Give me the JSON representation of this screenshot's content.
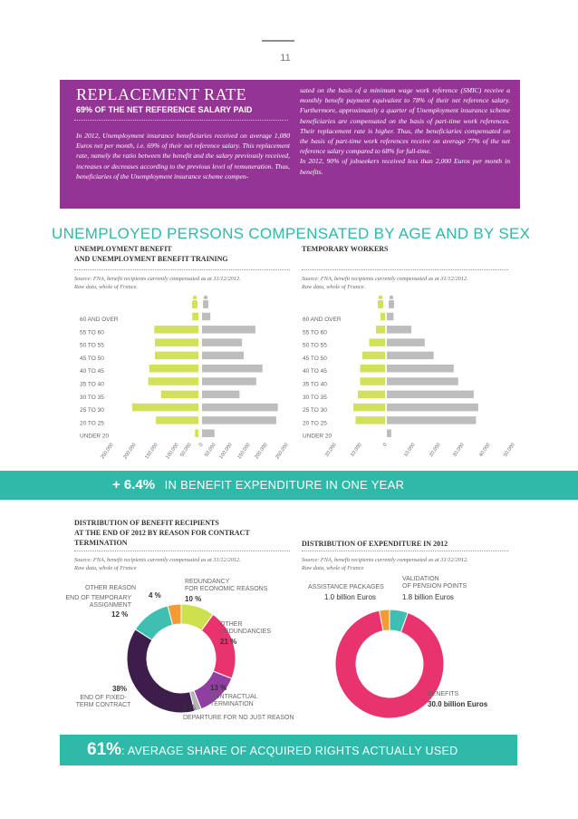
{
  "page_number": "11",
  "replacement": {
    "title": "REPLACEMENT RATE",
    "subtitle": "69% OF THE NET REFERENCE SALARY PAID",
    "left_text": "In 2012, Unemployment insurance beneficiaries received on average 1,080 Euros net per month, i.e. 69% of their net reference salary. This replacement rate, namely the ratio between the benefit and the salary previously received, increases or decreases according to the previous level of remuneration. Thus, beneficiaries of the Unemployment insurance scheme compen-",
    "right_text": "sated on the basis of a minimum wage work reference (SMIC) receive a monthly benefit payment equivalent to 78% of their net reference salary. Furthermore, approximately a quarter of Unemployment insurance scheme beneficiaries are compensated on the basis of part-time work references. Their replacement rate is higher. Thus, the beneficiaries compensated on the basis of part-time work references receive on average 77% of the net reference salary compared to 68% for full-time.",
    "right_text2": "In 2012, 90% of jobseekers received less than 2,000 Euros per month in benefits."
  },
  "section_title": "UNEMPLOYED PERSONS COMPENSATED BY AGE AND BY SEX",
  "left_pyramid_title_1": "UNEMPLOYMENT BENEFIT",
  "left_pyramid_title_2": "AND UNEMPLOYMENT BENEFIT TRAINING",
  "right_pyramid_title": "TEMPORARY WORKERS",
  "source_line_1": "Source: FNA, benefit recipients currently compensated as at 31/12/2012.",
  "source_line_2": "Raw data, whole of France.",
  "source_line_2b": "Raw data, whole of France",
  "banner1_big": "+ 6.4%",
  "banner1_text": "IN BENEFIT EXPENDITURE IN ONE YEAR",
  "dist_title_1": "DISTRIBUTION OF BENEFIT RECIPIENTS",
  "dist_title_2": "AT THE END OF 2012 BY REASON FOR CONTRACT",
  "dist_title_3": "TERMINATION",
  "exp_title": "DISTRIBUTION OF EXPENDITURE IN 2012",
  "donut_labels": {
    "other_reason": "OTHER REASON",
    "temp_1": "END OF TEMPORARY",
    "temp_2": "ASSIGNMENT",
    "redund_1": "REDUNDANCY",
    "redund_2": "FOR ECONOMIC REASONS",
    "other_red_1": "OTHER",
    "other_red_2": "REDUNDANCIES",
    "fixed_1": "END OF FIXED-",
    "fixed_2": "TERM CONTRACT",
    "contract_1": "CONTRACTUAL",
    "contract_2": "TERMINATION",
    "departure": "DEPARTURE FOR NO JUST REASON",
    "p_other": "4 %",
    "p_temp": "12 %",
    "p_redund": "10 %",
    "p_other_red": "21 %",
    "p_fixed": "38%",
    "p_contract": "13 %",
    "p_departure": "2 %"
  },
  "expenditure_labels": {
    "assist": "ASSISTANCE PACKAGES",
    "assist_val": "1.0 billion Euros",
    "valid_1": "VALIDATION",
    "valid_2": "OF PENSION POINTS",
    "valid_val": "1.8 billion Euros",
    "benefits": "BENEFITS",
    "benefits_val": "30.0 billion Euros"
  },
  "banner2_big": "61%",
  "banner2_text": ": AVERAGE SHARE OF ACQUIRED RIGHTS ACTUALLY USED",
  "colors": {
    "purple": "#943595",
    "teal": "#2fb9a8",
    "female": "#d2e05a",
    "male": "#bdbdbd",
    "pink": "#e8336f",
    "orange": "#f39c33",
    "cyan": "#3ebfb1",
    "dark_purple": "#3d1d4a",
    "violet": "#8e3fa0",
    "green_yellow": "#cde14e",
    "grey": "#b5b5b5"
  },
  "chart_data": [
    {
      "type": "bar",
      "orientation": "population-pyramid",
      "title": "UNEMPLOYMENT BENEFIT AND UNEMPLOYMENT BENEFIT TRAINING",
      "categories": [
        "60 AND OVER",
        "55 TO 60",
        "50 TO 55",
        "45 TO 50",
        "40 TO 45",
        "35 TO 40",
        "30 TO 35",
        "25 TO 30",
        "20 TO 25",
        "UNDER 20"
      ],
      "series": [
        {
          "name": "Women",
          "values": [
            18000,
            130000,
            128000,
            128000,
            145000,
            148000,
            110000,
            195000,
            125000,
            10000
          ]
        },
        {
          "name": "Men",
          "values": [
            20000,
            128000,
            96000,
            100000,
            145000,
            130000,
            90000,
            182000,
            178000,
            30000
          ]
        }
      ],
      "tick_labels": [
        "250,000",
        "200,000",
        "150,000",
        "100,000",
        "50,000",
        "0",
        "50,000",
        "100,000",
        "150,000",
        "200,000",
        "250,000"
      ],
      "xlim": [
        -250000,
        250000
      ]
    },
    {
      "type": "bar",
      "orientation": "population-pyramid",
      "title": "TEMPORARY WORKERS",
      "categories": [
        "60 AND OVER",
        "55 TO 60",
        "50 TO 55",
        "45 TO 50",
        "40 TO 45",
        "35 TO 40",
        "30 TO 35",
        "25 TO 30",
        "20 TO 25",
        "UNDER 20"
      ],
      "series": [
        {
          "name": "Women",
          "values": [
            2000,
            4000,
            7000,
            10000,
            11000,
            11000,
            12000,
            14000,
            13000,
            0
          ]
        },
        {
          "name": "Men",
          "values": [
            3000,
            11000,
            17000,
            21000,
            30000,
            32000,
            39000,
            41000,
            40000,
            2000
          ]
        }
      ],
      "tick_labels": [
        "20,000",
        "10,000",
        "0",
        "10,000",
        "20,000",
        "30,000",
        "40,000",
        "50,000"
      ],
      "xlim": [
        -20000,
        50000
      ]
    },
    {
      "type": "pie",
      "title": "DISTRIBUTION OF BENEFIT RECIPIENTS AT THE END OF 2012 BY REASON FOR CONTRACT TERMINATION",
      "categories": [
        "Redundancy for economic reasons",
        "Other redundancies",
        "Contractual termination",
        "Departure for no just reason",
        "End of fixed-term contract",
        "End of temporary assignment",
        "Other reason"
      ],
      "values": [
        10,
        21,
        13,
        2,
        38,
        12,
        4
      ]
    },
    {
      "type": "pie",
      "title": "DISTRIBUTION OF EXPENDITURE IN 2012",
      "categories": [
        "Validation of pension points",
        "Benefits",
        "Assistance packages"
      ],
      "values": [
        1.8,
        30.0,
        1.0
      ]
    }
  ]
}
